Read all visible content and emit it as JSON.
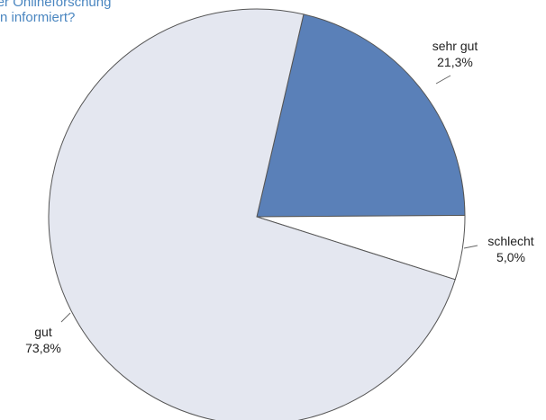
{
  "title_lines": [
    "zu über Onlineforschung",
    "n informiert?"
  ],
  "chart_data": {
    "type": "pie",
    "slices": [
      {
        "label": "sehr gut",
        "value": 21.3,
        "value_label": "21,3%",
        "color": "#5a80b8"
      },
      {
        "label": "schlecht",
        "value": 5.0,
        "value_label": "5,0%",
        "color": "#ffffff"
      },
      {
        "label": "gut",
        "value": 73.8,
        "value_label": "73,8%",
        "color": "#e4e7f0"
      }
    ],
    "start_angle_deg": -77,
    "direction": "clockwise",
    "stroke": "#555555"
  }
}
